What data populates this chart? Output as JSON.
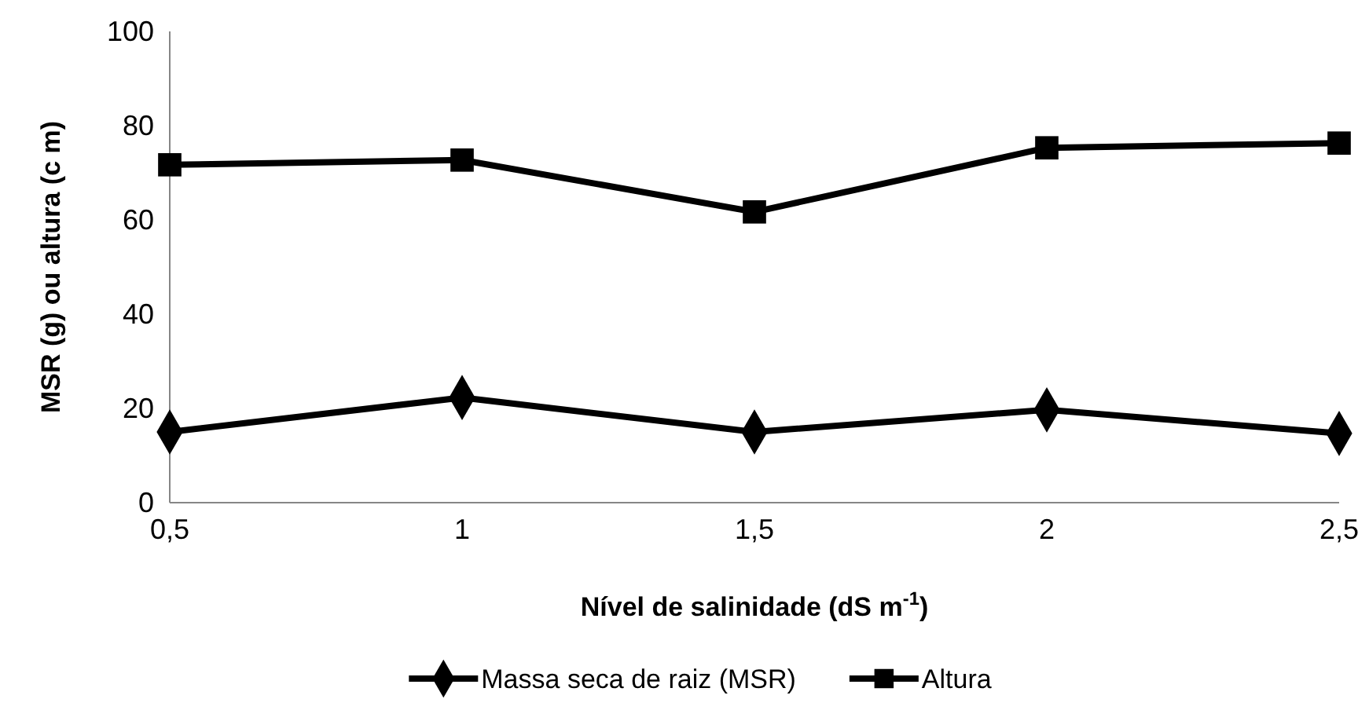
{
  "chart_data": {
    "type": "line",
    "xlabel": "Nível de salinidade (dS m$^{-1}$)",
    "ylabel": "MSR (g) ou altura (c m)",
    "x": [
      0.5,
      1,
      1.5,
      2,
      2.5
    ],
    "xlim": [
      0.5,
      2.5
    ],
    "xticks": [
      {
        "value": 0.5,
        "label": "0,5"
      },
      1,
      {
        "value": 1.5,
        "label": "1,5"
      },
      2,
      {
        "value": 2.5,
        "label": "2,5"
      }
    ],
    "ylim": [
      0,
      100
    ],
    "yticks": [
      0,
      20,
      40,
      60,
      80,
      100
    ],
    "grid": false,
    "legend": "bottom",
    "series": [
      {
        "name": "Massa seca de raiz (MSR)",
        "color": "#000000",
        "marker": "diamond",
        "values": [
          15,
          22.3,
          15,
          19.7,
          14.7
        ]
      },
      {
        "name": "Altura",
        "color": "#000000",
        "marker": "square",
        "values": [
          71.7,
          72.7,
          61.7,
          75.3,
          76.3
        ]
      }
    ]
  }
}
